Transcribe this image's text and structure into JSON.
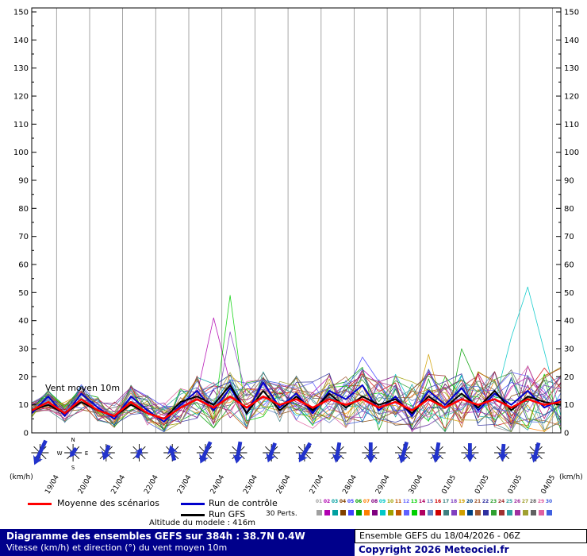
{
  "chart": {
    "unit": "(km/h)",
    "inplot_label": "Vent moyen 10m",
    "y_min": 0,
    "y_max": 150,
    "y_label_step": 10,
    "y_tick_step": 5
  },
  "chart_data": {
    "type": "line",
    "title": "Diagramme des ensembles GEFS sur 384h : 38.7N 0.4W",
    "ylabel": "Vitesse (km/h)",
    "ylim": [
      0,
      150
    ],
    "x_total_hours": 384,
    "x_step_hours": 12,
    "x_dates": [
      "19/04",
      "20/04",
      "21/04",
      "22/04",
      "23/04",
      "24/04",
      "25/04",
      "26/04",
      "27/04",
      "28/04",
      "29/04",
      "30/04",
      "01/05",
      "02/05",
      "03/05",
      "04/05"
    ],
    "series": [
      {
        "name": "Moyenne des scénarios",
        "color": "#ff0000",
        "width": 2.5,
        "values": [
          8,
          11,
          7,
          12,
          8,
          6,
          11,
          7,
          5,
          9,
          12,
          9,
          13,
          9,
          13,
          10,
          12,
          9,
          12,
          10,
          12,
          9,
          11,
          8,
          12,
          9,
          12,
          10,
          12,
          9,
          12,
          10,
          11
        ]
      },
      {
        "name": "Run de contrôle",
        "color": "#0000cc",
        "width": 2,
        "values": [
          7,
          13,
          6,
          14,
          9,
          5,
          13,
          8,
          4,
          10,
          15,
          8,
          16,
          7,
          18,
          9,
          14,
          7,
          15,
          12,
          17,
          8,
          13,
          6,
          15,
          10,
          16,
          8,
          14,
          10,
          15,
          9,
          12
        ]
      },
      {
        "name": "Run GFS",
        "color": "#000000",
        "width": 2,
        "values": [
          8,
          10,
          7,
          11,
          8,
          6,
          10,
          7,
          5,
          11,
          13,
          10,
          17,
          7,
          15,
          8,
          13,
          8,
          14,
          9,
          13,
          10,
          12,
          7,
          13,
          9,
          14,
          9,
          15,
          8,
          13,
          11,
          10
        ]
      }
    ],
    "ensemble": {
      "count": 30,
      "spread": [
        3,
        4,
        4,
        5,
        5,
        5,
        6,
        6,
        6,
        7,
        8,
        9,
        10,
        9,
        9,
        8,
        9,
        9,
        10,
        10,
        11,
        10,
        10,
        10,
        11,
        11,
        12,
        12,
        13,
        13,
        14,
        13,
        12
      ],
      "colors": [
        "#a0a0a0",
        "#b000b0",
        "#00a0a0",
        "#804000",
        "#4040ff",
        "#00a000",
        "#ff8000",
        "#800080",
        "#00c8c8",
        "#a0a000",
        "#c05800",
        "#6060ff",
        "#00d000",
        "#b00060",
        "#6080c0",
        "#d00000",
        "#408080",
        "#8040c0",
        "#d0a000",
        "#004080",
        "#a05830",
        "#3030a0",
        "#30a030",
        "#a03030",
        "#30a0a0",
        "#a030a0",
        "#a0a030",
        "#606060",
        "#e060a0",
        "#4060e0"
      ],
      "overrides": [
        {
          "m": 12,
          "t": 12,
          "v": 49
        },
        {
          "m": 1,
          "t": 11,
          "v": 41
        },
        {
          "m": 17,
          "t": 12,
          "v": 36
        },
        {
          "m": 8,
          "t": 30,
          "v": 52
        },
        {
          "m": 8,
          "t": 29,
          "v": 34
        },
        {
          "m": 8,
          "t": 31,
          "v": 29
        },
        {
          "m": 5,
          "t": 26,
          "v": 30
        },
        {
          "m": 4,
          "t": 20,
          "v": 27
        },
        {
          "m": 18,
          "t": 24,
          "v": 28
        }
      ]
    },
    "wind_arrows": {
      "color": "#2233cc",
      "dirs": [
        205,
        215,
        200,
        25,
        345,
        205,
        190,
        200,
        210,
        190,
        180,
        195,
        190,
        180,
        185,
        195
      ],
      "lens": [
        34,
        14,
        20,
        14,
        20,
        30,
        28,
        26,
        28,
        26,
        26,
        28,
        26,
        24,
        22,
        26
      ],
      "compass_index": 1,
      "compass": {
        "n": "N",
        "s": "S",
        "w": "W",
        "e": "E"
      }
    }
  },
  "legend": {
    "mean": "Moyenne des scénarios",
    "control": "Run de contrôle",
    "gfs": "Run GFS",
    "perts": "30 Perts."
  },
  "footer": {
    "altitude": "Altitude du modele : 416m",
    "title": "Diagramme des ensembles GEFS sur 384h : 38.7N 0.4W",
    "subtitle": "Vitesse (km/h) et direction (°) du vent moyen 10m",
    "run": "Ensemble GEFS du 18/04/2026 - 06Z",
    "copyright": "Copyright 2026 Meteociel.fr"
  }
}
